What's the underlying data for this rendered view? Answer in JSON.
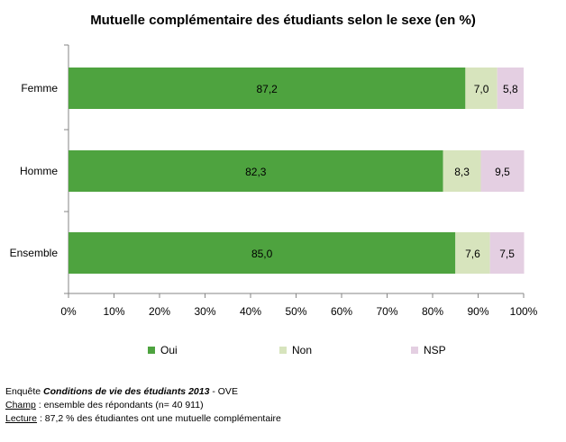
{
  "chart_data": {
    "type": "bar",
    "orientation": "horizontal",
    "stacked": true,
    "title": "Mutuelle complémentaire des étudiants selon le sexe (en %)",
    "categories": [
      "Femme",
      "Homme",
      "Ensemble"
    ],
    "series": [
      {
        "name": "Oui",
        "values": [
          87.2,
          82.3,
          85.0
        ],
        "labels": [
          "87,2",
          "82,3",
          "85,0"
        ],
        "color": "#4ea33f"
      },
      {
        "name": "Non",
        "values": [
          7.0,
          8.3,
          7.6
        ],
        "labels": [
          "7,0",
          "8,3",
          "7,6"
        ],
        "color": "#d7e4bd"
      },
      {
        "name": "NSP",
        "values": [
          5.8,
          9.5,
          7.5
        ],
        "labels": [
          "5,8",
          "9,5",
          "7,5"
        ],
        "color": "#e4cfe2"
      }
    ],
    "xlim": [
      0,
      100
    ],
    "xticks": [
      "0%",
      "10%",
      "20%",
      "30%",
      "40%",
      "50%",
      "60%",
      "70%",
      "80%",
      "90%",
      "100%"
    ],
    "grid": false,
    "legend_position": "bottom"
  },
  "footnotes": {
    "line1_prefix": "Enquête ",
    "line1_bold": "Conditions de vie des étudiants 2013",
    "line1_suffix": " - OVE",
    "line2_label": "Champ",
    "line2_text": " : ensemble des répondants (n= 40 911)",
    "line3_label": "Lecture",
    "line3_text": " : 87,2 % des étudiantes ont une mutuelle complémentaire"
  }
}
